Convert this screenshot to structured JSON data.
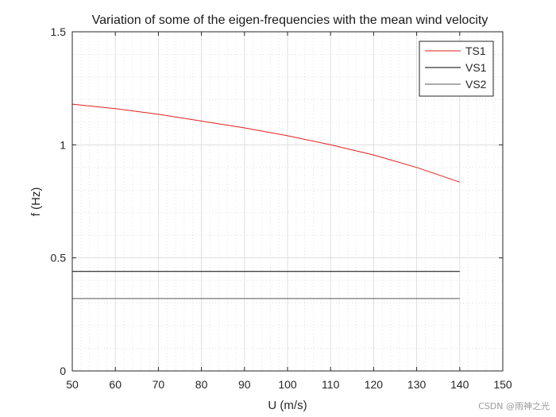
{
  "chart_data": {
    "type": "line",
    "title": "Variation of some of the eigen-frequencies with the mean wind velocity",
    "xlabel": "U (m/s)",
    "ylabel": "f (Hz)",
    "xlim": [
      50,
      150
    ],
    "ylim": [
      0,
      1.5
    ],
    "xticks": [
      50,
      60,
      70,
      80,
      90,
      100,
      110,
      120,
      130,
      140,
      150
    ],
    "yticks": [
      0,
      0.5,
      1,
      1.5
    ],
    "ytick_labels": [
      "0",
      "0.5",
      "1",
      "1.5"
    ],
    "grid": true,
    "minor_grid": true,
    "legend_position": "top-right",
    "series": [
      {
        "name": "TS1",
        "color": "#e0201b",
        "x": [
          50,
          60,
          70,
          80,
          90,
          100,
          110,
          120,
          130,
          140
        ],
        "y": [
          1.18,
          1.16,
          1.135,
          1.105,
          1.075,
          1.04,
          1.0,
          0.955,
          0.9,
          0.835
        ]
      },
      {
        "name": "VS1",
        "color": "#000000",
        "x": [
          50,
          140
        ],
        "y": [
          0.44,
          0.44
        ]
      },
      {
        "name": "VS2",
        "color": "#555555",
        "x": [
          50,
          140
        ],
        "y": [
          0.32,
          0.32
        ]
      }
    ]
  },
  "watermark": "CSDN @雨神之光"
}
